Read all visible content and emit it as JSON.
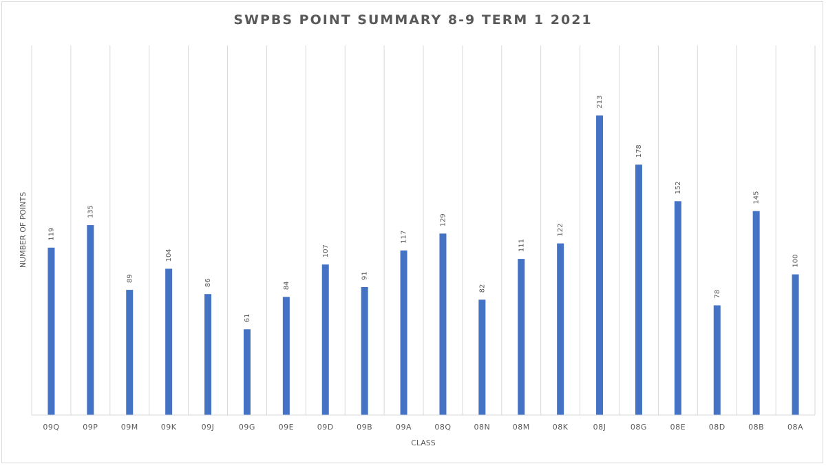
{
  "chart_data": {
    "type": "bar",
    "title": "SWPBS POINT SUMMARY 8-9 TERM 1 2021",
    "xlabel": "CLASS",
    "ylabel": "NUMBER OF POINTS",
    "categories": [
      "09Q",
      "09P",
      "09M",
      "09K",
      "09J",
      "09G",
      "09E",
      "09D",
      "09B",
      "09A",
      "08Q",
      "08N",
      "08M",
      "08K",
      "08J",
      "08G",
      "08E",
      "08D",
      "08B",
      "08A"
    ],
    "series": [
      {
        "values": [
          119,
          135,
          89,
          104,
          86,
          61,
          84,
          107,
          91,
          117,
          129,
          82,
          111,
          122,
          213,
          178,
          152,
          78,
          145,
          100
        ]
      }
    ],
    "data_labels": true,
    "ylim": [
      0,
      250
    ],
    "grid": "vertical",
    "legend": "none",
    "bar_color": "#4472c4",
    "grid_color": "#d9d9d9",
    "text_color": "#595959"
  }
}
